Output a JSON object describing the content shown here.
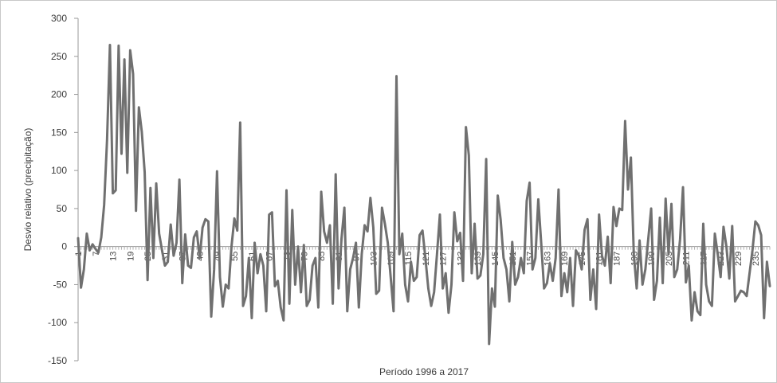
{
  "chart_data": {
    "type": "line",
    "title": "",
    "xlabel": "Período 1996 a 2017",
    "ylabel": "Desvio relativo (precipitação)",
    "ylim": [
      -150,
      300
    ],
    "yticks": [
      300,
      250,
      200,
      150,
      100,
      50,
      0,
      -50,
      -100,
      -150
    ],
    "xlim": [
      1,
      240
    ],
    "xticks": [
      1,
      7,
      13,
      19,
      25,
      31,
      37,
      43,
      49,
      55,
      61,
      67,
      73,
      79,
      85,
      91,
      97,
      103,
      109,
      115,
      121,
      127,
      133,
      139,
      145,
      151,
      157,
      163,
      169,
      175,
      181,
      187,
      193,
      199,
      205,
      211,
      217,
      223,
      229,
      235
    ],
    "grid": false,
    "legend": "none",
    "line_color": "#707070",
    "series": [
      {
        "x": [
          1,
          2,
          3,
          4,
          5,
          6,
          7,
          8,
          9,
          10,
          11,
          12,
          13,
          14,
          15,
          16,
          17,
          18,
          19,
          20,
          21,
          22,
          23,
          24,
          25,
          26,
          27,
          28,
          29,
          30,
          31,
          32,
          33,
          34,
          35,
          36,
          37,
          38,
          39,
          40,
          41,
          42,
          43,
          44,
          45,
          46,
          47,
          48,
          49,
          50,
          51,
          52,
          53,
          54,
          55,
          56,
          57,
          58,
          59,
          60,
          61,
          62,
          63,
          64,
          65,
          66,
          67,
          68,
          69,
          70,
          71,
          72,
          73,
          74,
          75,
          76,
          77,
          78,
          79,
          80,
          81,
          82,
          83,
          84,
          85,
          86,
          87,
          88,
          89,
          90,
          91,
          92,
          93,
          94,
          95,
          96,
          97,
          98,
          99,
          100,
          101,
          102,
          103,
          104,
          105,
          106,
          107,
          108,
          109,
          110,
          111,
          112,
          113,
          114,
          115,
          116,
          117,
          118,
          119,
          120,
          121,
          122,
          123,
          124,
          125,
          126,
          127,
          128,
          129,
          130,
          131,
          132,
          133,
          134,
          135,
          136,
          137,
          138,
          139,
          140,
          141,
          142,
          143,
          144,
          145,
          146,
          147,
          148,
          149,
          150,
          151,
          152,
          153,
          154,
          155,
          156,
          157,
          158,
          159,
          160,
          161,
          162,
          163,
          164,
          165,
          166,
          167,
          168,
          169,
          170,
          171,
          172,
          173,
          174,
          175,
          176,
          177,
          178,
          179,
          180,
          181,
          182,
          183,
          184,
          185,
          186,
          187,
          188,
          189,
          190,
          191,
          192,
          193,
          194,
          195,
          196,
          197,
          198,
          199,
          200,
          201,
          202,
          203,
          204,
          205,
          206,
          207,
          208,
          209,
          210,
          211,
          212,
          213,
          214,
          215,
          216,
          217,
          218,
          219,
          220,
          221,
          222,
          223,
          224,
          225,
          226,
          227,
          228,
          229,
          230,
          231,
          232,
          233,
          234,
          235,
          236,
          237,
          238,
          239,
          240
        ],
        "values": [
          11,
          -54,
          -30,
          17,
          -5,
          3,
          -3,
          -8,
          12,
          55,
          140,
          265,
          70,
          74,
          264,
          122,
          246,
          97,
          258,
          227,
          47,
          183,
          151,
          98,
          -44,
          77,
          -15,
          83,
          17,
          -5,
          -25,
          -20,
          29,
          -12,
          5,
          88,
          -48,
          16,
          -25,
          -28,
          12,
          20,
          -15,
          25,
          36,
          33,
          -92,
          -30,
          99,
          -40,
          -79,
          -50,
          -55,
          0,
          37,
          21,
          163,
          -78,
          -65,
          -15,
          -94,
          5,
          -35,
          -10,
          -25,
          -85,
          42,
          45,
          -52,
          -45,
          -80,
          -97,
          74,
          -75,
          48,
          -50,
          0,
          -60,
          2,
          -78,
          -70,
          -25,
          -15,
          -80,
          72,
          20,
          5,
          28,
          -75,
          95,
          -55,
          10,
          51,
          -85,
          -30,
          -15,
          5,
          -80,
          -10,
          28,
          20,
          64,
          25,
          -62,
          -58,
          51,
          30,
          5,
          -40,
          -85,
          224,
          -10,
          17,
          -50,
          -72,
          -20,
          -45,
          -40,
          15,
          21,
          -15,
          -55,
          -78,
          -60,
          -10,
          42,
          -55,
          -35,
          -87,
          -50,
          45,
          7,
          18,
          -45,
          157,
          120,
          -35,
          30,
          -42,
          -38,
          -10,
          115,
          -128,
          -55,
          -79,
          67,
          35,
          -15,
          -30,
          -72,
          6,
          -50,
          -40,
          -15,
          -35,
          60,
          84,
          -30,
          -15,
          62,
          5,
          -55,
          -48,
          -22,
          -45,
          -15,
          75,
          -65,
          -35,
          -60,
          -15,
          -78,
          -5,
          -12,
          -30,
          22,
          36,
          -70,
          -30,
          -82,
          42,
          -12,
          -25,
          13,
          -48,
          52,
          27,
          50,
          48,
          165,
          75,
          117,
          -10,
          -55,
          8,
          -50,
          -30,
          10,
          50,
          -70,
          -45,
          38,
          -48,
          63,
          -10,
          56,
          -40,
          -30,
          10,
          78,
          -47,
          -25,
          -97,
          -60,
          -85,
          -90,
          30,
          -50,
          -72,
          -78,
          17,
          -10,
          -40,
          26,
          0,
          -42,
          27,
          -72,
          -65,
          -58,
          -60,
          -65,
          -35,
          -5,
          33,
          28,
          15,
          -94,
          -20,
          -52
        ]
      }
    ]
  }
}
